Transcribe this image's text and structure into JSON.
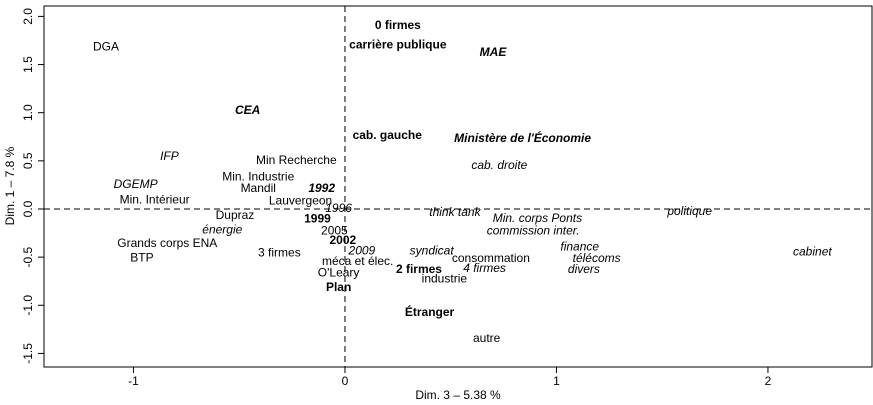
{
  "chart_data": {
    "type": "text-scatter",
    "xlabel": "Dim. 3 – 5.38 %",
    "ylabel": "Dim. 1 – 7.8 %",
    "xlim": [
      -1.423,
      2.492
    ],
    "ylim": [
      -1.641,
      2.108
    ],
    "xticks": [
      {
        "value": -1,
        "label": "-1"
      },
      0,
      1,
      2
    ],
    "yticks": [
      {
        "value": -1.5,
        "label": "-1.5"
      },
      {
        "value": -1,
        "label": "-1.0"
      },
      {
        "value": -0.5,
        "label": "-0.5"
      },
      {
        "value": 0,
        "label": "0.0"
      },
      {
        "value": 0.5,
        "label": "0.5"
      },
      {
        "value": 1,
        "label": "1.0"
      },
      {
        "value": 1.5,
        "label": "1.5"
      },
      {
        "value": 2,
        "label": "2.0"
      }
    ],
    "labels": [
      "DGA",
      "0 firmes",
      "carrière publique",
      "MAE",
      "CEA",
      "cab. gauche",
      "Ministère de l'Économie",
      "IFP",
      "Min Recherche",
      "cab. droite",
      "Min. Industrie",
      "DGEMP",
      "Mandil",
      "1992",
      "Min. Intérieur",
      "Lauvergeon",
      "1996",
      "think tank",
      "Min. corps Ponts",
      "politique",
      "Dupraz",
      "1999",
      "commission inter.",
      "énergie",
      "2005",
      "2002",
      "Grands corps ENA",
      "finance",
      "2009",
      "syndicat",
      "cabinet",
      "3 firmes",
      "BTP",
      "télécoms",
      "méca et élec.",
      "consommation",
      "2 firmes",
      "4 firmes",
      "divers",
      "O'Leary",
      "industrie",
      "Plan",
      "Étranger",
      "autre"
    ],
    "x": [
      -1.13,
      0.25,
      0.25,
      0.7,
      -0.46,
      0.2,
      0.84,
      -0.83,
      -0.23,
      0.73,
      -0.41,
      -0.99,
      -0.41,
      -0.11,
      -0.9,
      -0.21,
      -0.03,
      0.52,
      0.91,
      1.63,
      -0.52,
      -0.13,
      0.89,
      -0.58,
      -0.05,
      -0.01,
      -0.84,
      1.11,
      0.08,
      0.41,
      2.21,
      -0.31,
      -0.96,
      1.19,
      0.06,
      0.69,
      0.35,
      0.66,
      1.13,
      -0.03,
      0.47,
      -0.03,
      0.4,
      0.67
    ],
    "y": [
      1.68,
      1.9,
      1.7,
      1.62,
      1.02,
      0.76,
      0.73,
      0.54,
      0.5,
      0.45,
      0.33,
      0.25,
      0.21,
      0.21,
      0.09,
      0.08,
      0.0,
      -0.04,
      -0.1,
      -0.03,
      -0.07,
      -0.11,
      -0.23,
      -0.22,
      -0.23,
      -0.33,
      -0.36,
      -0.4,
      -0.44,
      -0.44,
      -0.45,
      -0.46,
      -0.51,
      -0.52,
      -0.55,
      -0.52,
      -0.63,
      -0.62,
      -0.63,
      -0.67,
      -0.73,
      -0.82,
      -1.08,
      -1.35
    ],
    "styles": [
      "normal",
      "bold",
      "bold",
      "bold italic",
      "bold italic",
      "bold",
      "bold italic",
      "italic",
      "normal",
      "italic",
      "normal",
      "italic",
      "normal",
      "bold italic",
      "normal",
      "normal",
      "italic",
      "italic",
      "italic",
      "italic",
      "normal",
      "bold",
      "italic",
      "italic",
      "normal",
      "bold",
      "normal",
      "italic",
      "italic",
      "italic",
      "italic",
      "normal",
      "normal",
      "italic",
      "normal",
      "normal",
      "bold",
      "italic",
      "italic",
      "normal",
      "normal",
      "bold",
      "bold",
      "normal"
    ],
    "color": "#000000"
  }
}
